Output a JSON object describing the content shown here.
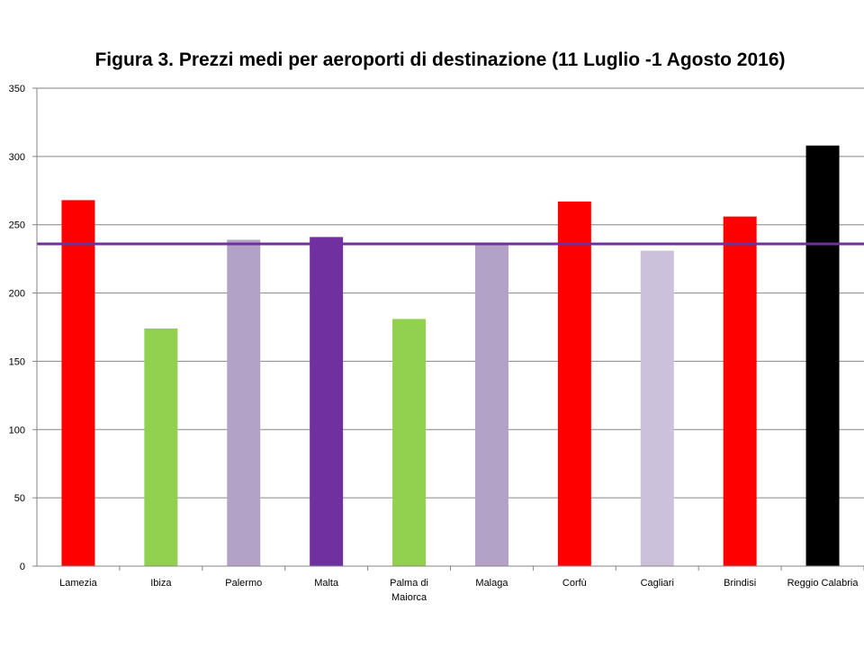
{
  "chart_data": {
    "type": "bar",
    "title": "Figura 3. Prezzi medi per aeroporti di destinazione (11 Luglio -1 Agosto 2016)",
    "xlabel": "",
    "ylabel": "",
    "ylim": [
      0,
      350
    ],
    "yticks": [
      0,
      50,
      100,
      150,
      200,
      250,
      300,
      350
    ],
    "grid": true,
    "legend": "none",
    "categories": [
      [
        "Lamezia"
      ],
      [
        "Ibiza"
      ],
      [
        "Palermo"
      ],
      [
        "Malta"
      ],
      [
        "Palma di",
        "Maiorca"
      ],
      [
        "Malaga"
      ],
      [
        "Corfù"
      ],
      [
        "Cagliari"
      ],
      [
        "Brindisi"
      ],
      [
        "Reggio Calabria"
      ]
    ],
    "values": [
      268,
      174,
      239,
      241,
      181,
      237,
      267,
      231,
      256,
      308
    ],
    "bar_colors": [
      "#ff0000",
      "#92d050",
      "#b3a2c7",
      "#7030a0",
      "#92d050",
      "#b3a2c7",
      "#ff0000",
      "#ccc1da",
      "#ff0000",
      "#000000"
    ],
    "reference_line": {
      "value": 236,
      "color": "#7030a0"
    },
    "colors": {
      "grid": "#868686",
      "axis": "#868686",
      "text": "#000000"
    }
  }
}
